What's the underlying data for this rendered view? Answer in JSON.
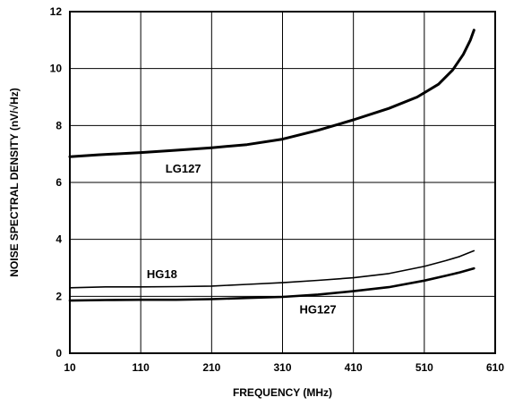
{
  "chart_data": {
    "type": "line",
    "title": "",
    "xlabel": "FREQUENCY (MHz)",
    "ylabel": "NOISE SPECTRAL DENSITY (nV/√Hz)",
    "xlim": [
      10,
      610
    ],
    "ylim": [
      0,
      12
    ],
    "x_ticks": [
      10,
      110,
      210,
      310,
      410,
      510,
      610
    ],
    "y_ticks": [
      0,
      2,
      4,
      6,
      8,
      10,
      12
    ],
    "grid": true,
    "legend": "none",
    "series": [
      {
        "name": "LG127",
        "color": "#000000",
        "x": [
          10,
          50,
          110,
          160,
          210,
          260,
          310,
          360,
          410,
          460,
          500,
          530,
          550,
          565,
          575,
          580
        ],
        "y": [
          6.9,
          6.97,
          7.05,
          7.13,
          7.22,
          7.33,
          7.52,
          7.83,
          8.2,
          8.6,
          9.0,
          9.45,
          9.95,
          10.5,
          11.0,
          11.35
        ]
      },
      {
        "name": "HG18",
        "color": "#000000",
        "x": [
          10,
          60,
          110,
          160,
          210,
          260,
          310,
          360,
          410,
          460,
          510,
          540,
          560,
          580
        ],
        "y": [
          2.3,
          2.33,
          2.33,
          2.34,
          2.36,
          2.42,
          2.48,
          2.56,
          2.65,
          2.8,
          3.05,
          3.25,
          3.4,
          3.6
        ]
      },
      {
        "name": "HG127",
        "color": "#000000",
        "x": [
          10,
          60,
          110,
          160,
          210,
          260,
          310,
          360,
          410,
          460,
          510,
          540,
          560,
          580
        ],
        "y": [
          1.85,
          1.87,
          1.88,
          1.88,
          1.9,
          1.94,
          1.98,
          2.06,
          2.18,
          2.32,
          2.55,
          2.72,
          2.84,
          2.98
        ]
      }
    ],
    "annotations": [
      {
        "text": "LG127",
        "series": 0,
        "x": 170,
        "y": 6.5
      },
      {
        "text": "HG18",
        "series": 1,
        "x": 140,
        "y": 2.8
      },
      {
        "text": "HG127",
        "series": 2,
        "x": 360,
        "y": 1.55
      }
    ]
  }
}
